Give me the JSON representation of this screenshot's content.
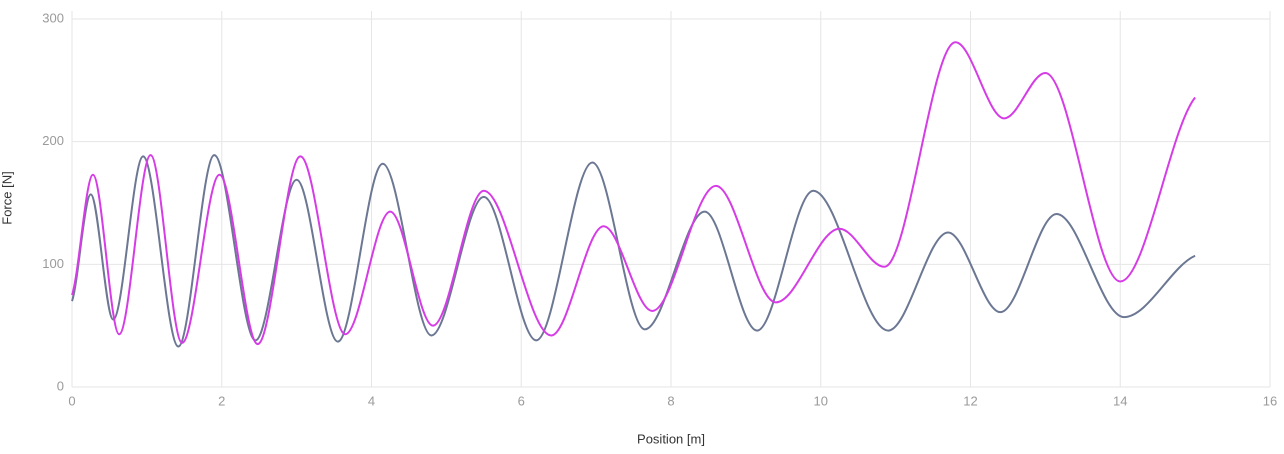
{
  "chart_data": {
    "type": "line",
    "x_label": "Position [m]",
    "y_label": "Force [N]",
    "xlim": [
      0,
      16
    ],
    "xticks": [
      0,
      2,
      4,
      6,
      8,
      10,
      12,
      14,
      16
    ],
    "ylim": [
      0,
      300
    ],
    "yticks": [
      0,
      100,
      200,
      300
    ],
    "grid": true,
    "series": [
      {
        "color": "#6b7793",
        "x": [
          0,
          0.25,
          0.55,
          0.95,
          1.42,
          1.9,
          2.45,
          3.0,
          3.55,
          4.15,
          4.8,
          5.5,
          6.2,
          6.95,
          7.65,
          8.45,
          9.15,
          9.9,
          10.9,
          11.7,
          12.4,
          13.15,
          14.05,
          15.0
        ],
        "values": [
          70,
          157,
          55,
          188,
          33,
          189,
          38,
          169,
          37,
          182,
          42,
          155,
          38,
          183,
          47,
          143,
          46,
          160,
          46,
          126,
          61,
          141,
          57,
          107
        ]
      },
      {
        "color": "#d63ce6",
        "x": [
          0,
          0.28,
          0.63,
          1.05,
          1.47,
          1.97,
          2.48,
          3.05,
          3.65,
          4.25,
          4.82,
          5.5,
          6.4,
          7.1,
          7.75,
          8.6,
          9.4,
          10.25,
          10.85,
          11.8,
          12.45,
          13.0,
          14.0,
          15.0
        ],
        "values": [
          75,
          173,
          43,
          189,
          36,
          173,
          35,
          188,
          43,
          143,
          50,
          160,
          42,
          131,
          62,
          164,
          69,
          129,
          98,
          281,
          219,
          256,
          86,
          236
        ]
      }
    ]
  }
}
